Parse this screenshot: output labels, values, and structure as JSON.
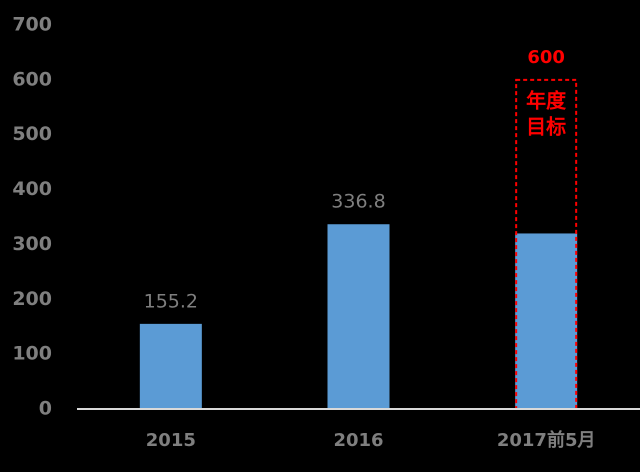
{
  "chart_data": {
    "type": "bar",
    "categories": [
      "2015",
      "2016",
      "2017前5月"
    ],
    "series": [
      {
        "color": "#5b9bd5",
        "values": [
          155.2,
          336.8,
          320
        ],
        "value_labels": [
          "155.2",
          "336.8",
          null
        ]
      }
    ],
    "targets": [
      null,
      null,
      600
    ],
    "target_label_lines": [
      "年度",
      "目标"
    ],
    "target_color": "#ff0000",
    "ylim": [
      0,
      700
    ],
    "yticks": [
      0,
      100,
      200,
      300,
      400,
      500,
      600,
      700
    ],
    "grid": false
  }
}
